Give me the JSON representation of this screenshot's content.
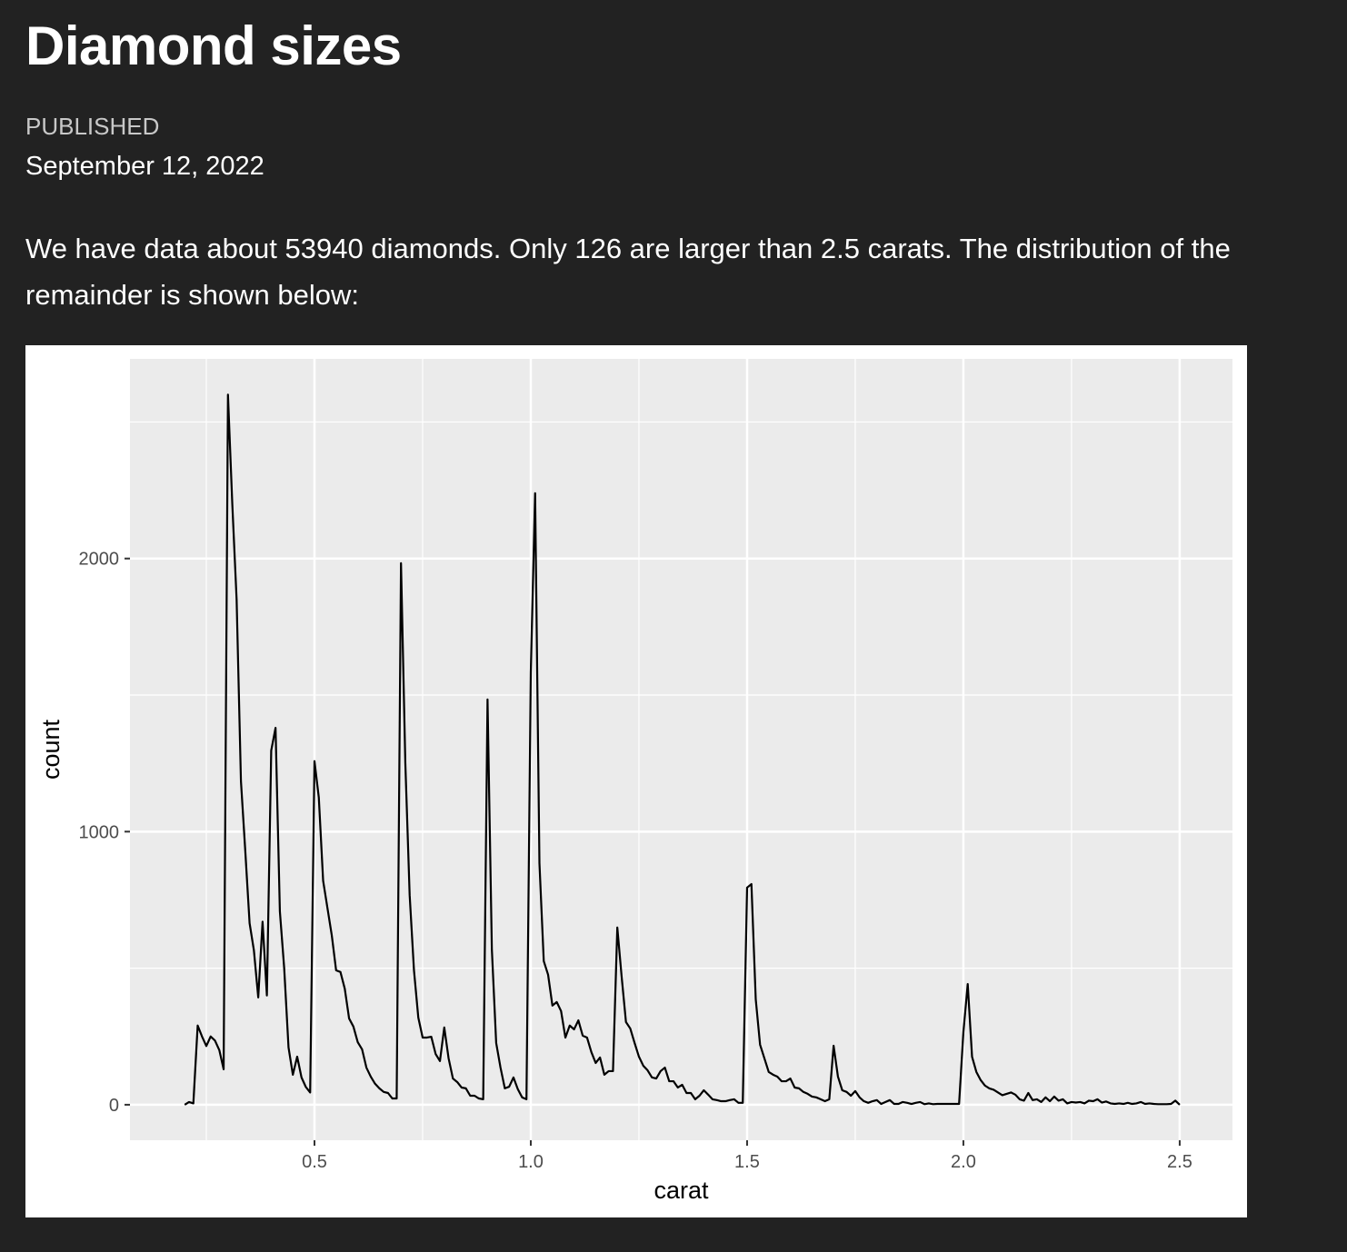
{
  "header": {
    "title": "Diamond sizes",
    "published_label": "PUBLISHED",
    "date": "September 12, 2022"
  },
  "body": {
    "paragraph": "We have data about 53940 diamonds. Only 126 are larger than 2.5 carats. The distribution of the remainder is shown below:"
  },
  "chart_data": {
    "type": "line",
    "xlabel": "carat",
    "ylabel": "count",
    "color": "#000000",
    "grid": true,
    "xlim": [
      0.0735,
      2.622
    ],
    "ylim": [
      -130,
      2731
    ],
    "xticks": [
      0.5,
      {
        "value": 1,
        "label": "1.0"
      },
      1.5,
      {
        "value": 2,
        "label": "2.0"
      },
      2.5
    ],
    "yticks": [
      0,
      1000,
      2000
    ],
    "xminor": [
      0.25,
      0.75,
      1.25,
      1.75,
      2.25
    ],
    "yminor": [
      500,
      1500,
      2500
    ],
    "x": [
      0.2,
      0.21,
      0.22,
      0.23,
      0.24,
      0.25,
      0.26,
      0.27,
      0.28,
      0.29,
      0.3,
      0.31,
      0.32,
      0.33,
      0.34,
      0.35,
      0.36,
      0.37,
      0.38,
      0.39,
      0.4,
      0.41,
      0.42,
      0.43,
      0.44,
      0.45,
      0.46,
      0.47,
      0.48,
      0.49,
      0.5,
      0.51,
      0.52,
      0.53,
      0.54,
      0.55,
      0.56,
      0.57,
      0.58,
      0.59,
      0.6,
      0.61,
      0.62,
      0.63,
      0.64,
      0.65,
      0.66,
      0.67,
      0.68,
      0.69,
      0.7,
      0.71,
      0.72,
      0.73,
      0.74,
      0.75,
      0.76,
      0.77,
      0.78,
      0.79,
      0.8,
      0.81,
      0.82,
      0.83,
      0.84,
      0.85,
      0.86,
      0.87,
      0.88,
      0.89,
      0.9,
      0.91,
      0.92,
      0.93,
      0.94,
      0.95,
      0.96,
      0.97,
      0.98,
      0.99,
      1.0,
      1.01,
      1.02,
      1.03,
      1.04,
      1.05,
      1.06,
      1.07,
      1.08,
      1.09,
      1.1,
      1.11,
      1.12,
      1.13,
      1.14,
      1.15,
      1.16,
      1.17,
      1.18,
      1.19,
      1.2,
      1.21,
      1.22,
      1.23,
      1.24,
      1.25,
      1.26,
      1.27,
      1.28,
      1.29,
      1.3,
      1.31,
      1.32,
      1.33,
      1.34,
      1.35,
      1.36,
      1.37,
      1.38,
      1.39,
      1.4,
      1.41,
      1.42,
      1.43,
      1.44,
      1.45,
      1.46,
      1.47,
      1.48,
      1.49,
      1.5,
      1.51,
      1.52,
      1.53,
      1.54,
      1.55,
      1.56,
      1.57,
      1.58,
      1.59,
      1.6,
      1.61,
      1.62,
      1.63,
      1.64,
      1.65,
      1.66,
      1.67,
      1.68,
      1.69,
      1.7,
      1.71,
      1.72,
      1.73,
      1.74,
      1.75,
      1.76,
      1.77,
      1.78,
      1.79,
      1.8,
      1.81,
      1.82,
      1.83,
      1.84,
      1.85,
      1.86,
      1.87,
      1.88,
      1.89,
      1.9,
      1.91,
      1.92,
      1.93,
      1.94,
      1.95,
      1.96,
      1.97,
      1.98,
      1.99,
      2.0,
      2.01,
      2.02,
      2.03,
      2.04,
      2.05,
      2.06,
      2.07,
      2.08,
      2.09,
      2.1,
      2.11,
      2.12,
      2.13,
      2.14,
      2.15,
      2.16,
      2.17,
      2.18,
      2.19,
      2.2,
      2.21,
      2.22,
      2.23,
      2.24,
      2.25,
      2.26,
      2.27,
      2.28,
      2.29,
      2.3,
      2.31,
      2.32,
      2.33,
      2.34,
      2.35,
      2.36,
      2.37,
      2.38,
      2.39,
      2.4,
      2.41,
      2.42,
      2.43,
      2.44,
      2.45,
      2.46,
      2.47,
      2.48,
      2.49,
      2.5
    ],
    "values": [
      0,
      10,
      5,
      290,
      250,
      215,
      250,
      235,
      200,
      130,
      2600,
      2200,
      1850,
      1185,
      930,
      665,
      565,
      393,
      670,
      400,
      1297,
      1380,
      708,
      500,
      210,
      110,
      176,
      100,
      65,
      45,
      1258,
      1125,
      820,
      720,
      620,
      492,
      486,
      425,
      316,
      286,
      229,
      203,
      136,
      103,
      77,
      60,
      47,
      43,
      23,
      23,
      1983,
      1251,
      768,
      492,
      319,
      246,
      246,
      249,
      186,
      160,
      283,
      170,
      96,
      83,
      63,
      60,
      33,
      33,
      23,
      20,
      1484,
      569,
      226,
      136,
      60,
      66,
      100,
      57,
      27,
      20,
      1583,
      2239,
      885,
      526,
      476,
      363,
      376,
      343,
      246,
      290,
      276,
      309,
      253,
      246,
      193,
      153,
      173,
      110,
      123,
      123,
      649,
      469,
      303,
      279,
      226,
      176,
      143,
      126,
      100,
      96,
      123,
      136,
      86,
      86,
      63,
      73,
      43,
      43,
      20,
      33,
      53,
      37,
      20,
      17,
      13,
      13,
      17,
      20,
      7,
      7,
      795,
      808,
      386,
      220,
      170,
      120,
      110,
      103,
      86,
      86,
      96,
      63,
      60,
      47,
      40,
      30,
      27,
      20,
      13,
      20,
      216,
      103,
      53,
      47,
      33,
      50,
      27,
      13,
      7,
      13,
      17,
      3,
      10,
      17,
      3,
      3,
      10,
      7,
      3,
      7,
      10,
      2,
      5,
      2,
      3,
      3,
      3,
      3,
      3,
      3,
      266,
      442,
      176,
      120,
      90,
      70,
      60,
      55,
      45,
      35,
      40,
      45,
      37,
      20,
      15,
      43,
      17,
      20,
      10,
      27,
      13,
      30,
      15,
      20,
      5,
      10,
      8,
      10,
      5,
      15,
      13,
      20,
      8,
      12,
      5,
      3,
      5,
      3,
      7,
      3,
      5,
      10,
      3,
      5,
      3,
      2,
      2,
      2,
      3,
      15,
      0
    ]
  }
}
